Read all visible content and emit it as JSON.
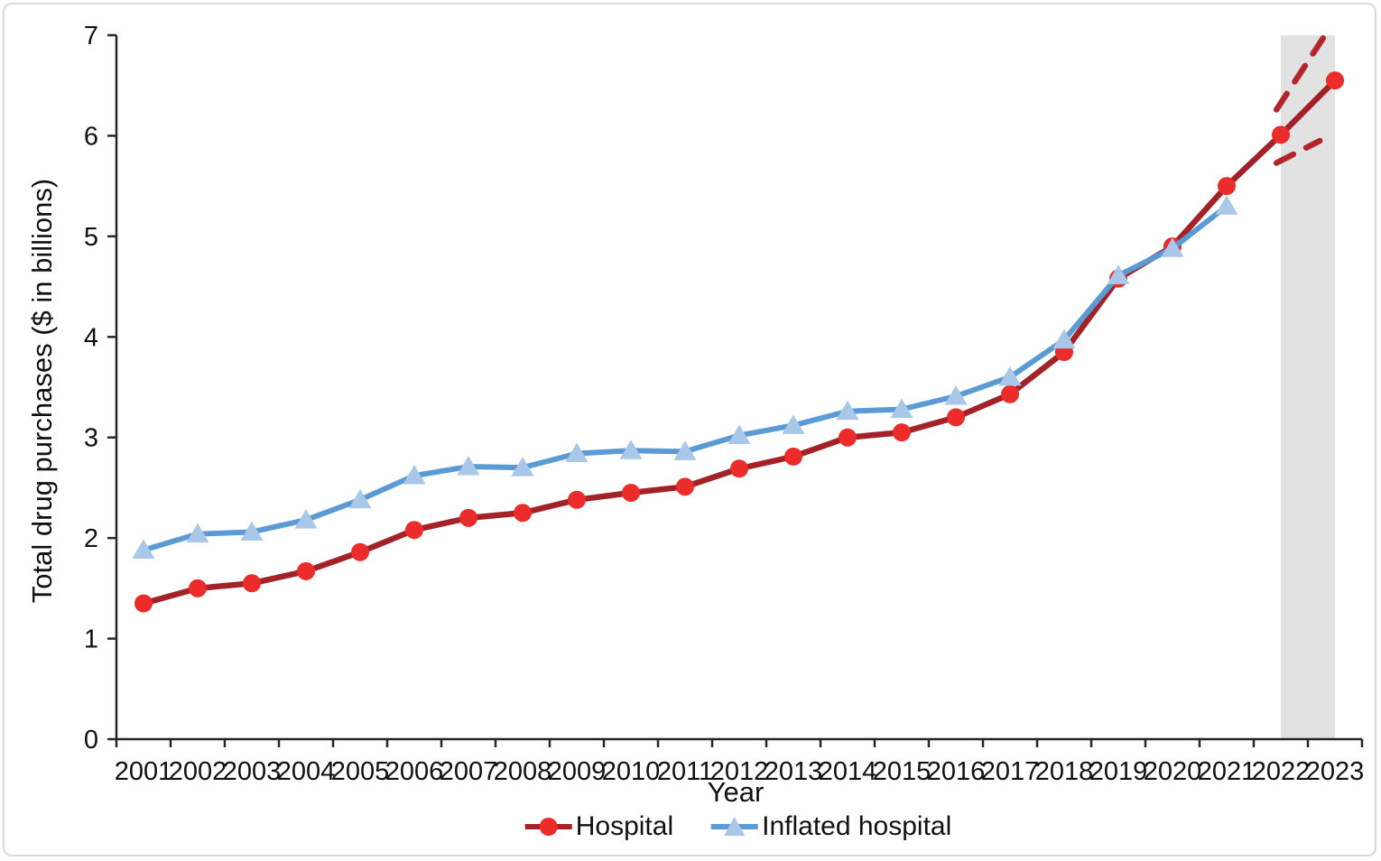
{
  "chart_data": {
    "type": "line",
    "title": "",
    "xlabel": "Year",
    "ylabel": "Total drug purchases ($ in billions)",
    "x": [
      2001,
      2002,
      2003,
      2004,
      2005,
      2006,
      2007,
      2008,
      2009,
      2010,
      2011,
      2012,
      2013,
      2014,
      2015,
      2016,
      2017,
      2018,
      2019,
      2020,
      2021,
      2022,
      2023
    ],
    "ylim": [
      0,
      7
    ],
    "yticks": [
      0,
      1,
      2,
      3,
      4,
      5,
      6,
      7
    ],
    "grid": false,
    "legend_position": "bottom",
    "series": [
      {
        "name": "Hospital",
        "marker": "circle",
        "values": [
          1.35,
          1.5,
          1.55,
          1.67,
          1.86,
          2.08,
          2.2,
          2.25,
          2.38,
          2.45,
          2.51,
          2.69,
          2.81,
          3.0,
          3.05,
          3.2,
          3.43,
          3.85,
          4.58,
          4.9,
          5.5,
          6.01,
          6.55
        ]
      },
      {
        "name": "Inflated hospital",
        "marker": "triangle",
        "values": [
          1.88,
          2.04,
          2.06,
          2.18,
          2.38,
          2.62,
          2.71,
          2.7,
          2.84,
          2.87,
          2.86,
          3.02,
          3.12,
          3.26,
          3.28,
          3.41,
          3.6,
          3.97,
          4.61,
          4.88,
          5.3,
          null,
          null
        ]
      }
    ],
    "projection_band": {
      "from": 2022,
      "to": 2023
    },
    "projection_lines": [
      {
        "name": "upper-uncertainty",
        "x1": 2021.92,
        "y1": 6.26,
        "x2": 2022.78,
        "y2": 6.97
      },
      {
        "name": "lower-uncertainty",
        "x1": 2021.92,
        "y1": 5.73,
        "x2": 2022.72,
        "y2": 5.95
      }
    ],
    "colors": {
      "hospital_line": "#A32228",
      "hospital_marker": "#EC2B2B",
      "inflated_line": "#5B9BD5",
      "inflated_marker": "#A9C7E8",
      "projection_dash": "#B3252B",
      "band": "#E2E2E2",
      "axis": "#262626",
      "text": "#111111"
    }
  }
}
